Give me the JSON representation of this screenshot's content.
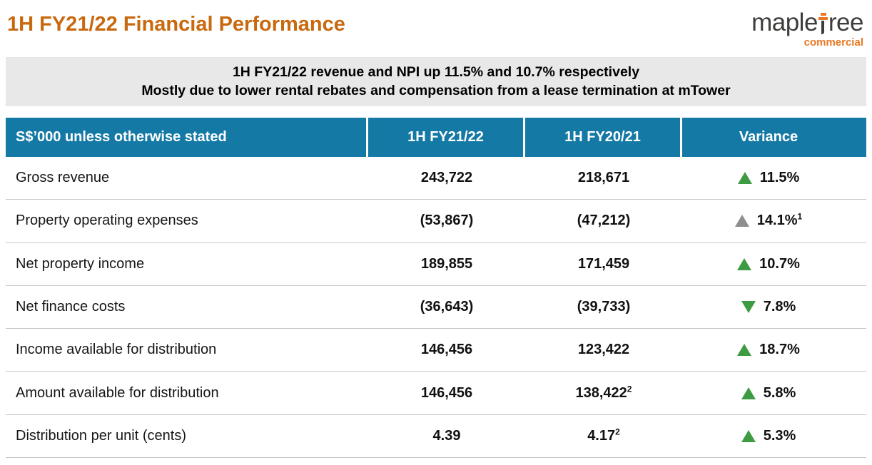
{
  "page": {
    "title": "1H FY21/22 Financial Performance"
  },
  "logo": {
    "brand_prefix": "maple",
    "brand_suffix": "ree",
    "brand_full": "mapletree",
    "subtitle": "commercial"
  },
  "banner": {
    "line1": "1H FY21/22 revenue and NPI up 11.5% and 10.7% respectively",
    "line2": "Mostly due to lower rental rebates and compensation from a lease termination at mTower"
  },
  "table": {
    "unit_note": "S$'000 unless otherwise stated",
    "headers": [
      {
        "label": "S$’000 unless otherwise stated"
      },
      {
        "label": "1H FY21/22"
      },
      {
        "label": "1H FY20/21"
      },
      {
        "label": "Variance"
      }
    ],
    "rows": [
      {
        "label": "Gross revenue",
        "fy2122": "243,722",
        "fy2021": "218,671",
        "fy2021_sup": "",
        "variance": "11.5%",
        "variance_sup": "",
        "variance_direction": "up",
        "variance_color": "green"
      },
      {
        "label": "Property operating expenses",
        "fy2122": "(53,867)",
        "fy2021": "(47,212)",
        "fy2021_sup": "",
        "variance": "14.1%",
        "variance_sup": "1",
        "variance_direction": "up",
        "variance_color": "gray"
      },
      {
        "label": "Net property income",
        "fy2122": "189,855",
        "fy2021": "171,459",
        "fy2021_sup": "",
        "variance": "10.7%",
        "variance_sup": "",
        "variance_direction": "up",
        "variance_color": "green"
      },
      {
        "label": "Net finance costs",
        "fy2122": "(36,643)",
        "fy2021": "(39,733)",
        "fy2021_sup": "",
        "variance": "7.8%",
        "variance_sup": "",
        "variance_direction": "down",
        "variance_color": "green"
      },
      {
        "label": "Income available for distribution",
        "fy2122": "146,456",
        "fy2021": "123,422",
        "fy2021_sup": "",
        "variance": "18.7%",
        "variance_sup": "",
        "variance_direction": "up",
        "variance_color": "green"
      },
      {
        "label": "Amount available for distribution",
        "fy2122": "146,456",
        "fy2021": "138,422",
        "fy2021_sup": "2",
        "variance": "5.8%",
        "variance_sup": "",
        "variance_direction": "up",
        "variance_color": "green"
      },
      {
        "label": "Distribution per unit (cents)",
        "fy2122": "4.39",
        "fy2021": "4.17",
        "fy2021_sup": "2",
        "variance": "5.3%",
        "variance_sup": "",
        "variance_direction": "up",
        "variance_color": "green"
      }
    ]
  },
  "colors": {
    "title_orange": "#c9690f",
    "logo_dark": "#3e3d3b",
    "logo_orange": "#e87722",
    "banner_bg": "#e8e8e8",
    "header_blue": "#1579a5",
    "variance_green": "#3f9b41",
    "variance_gray": "#8e8e8e",
    "row_border": "#c6c6c6"
  }
}
